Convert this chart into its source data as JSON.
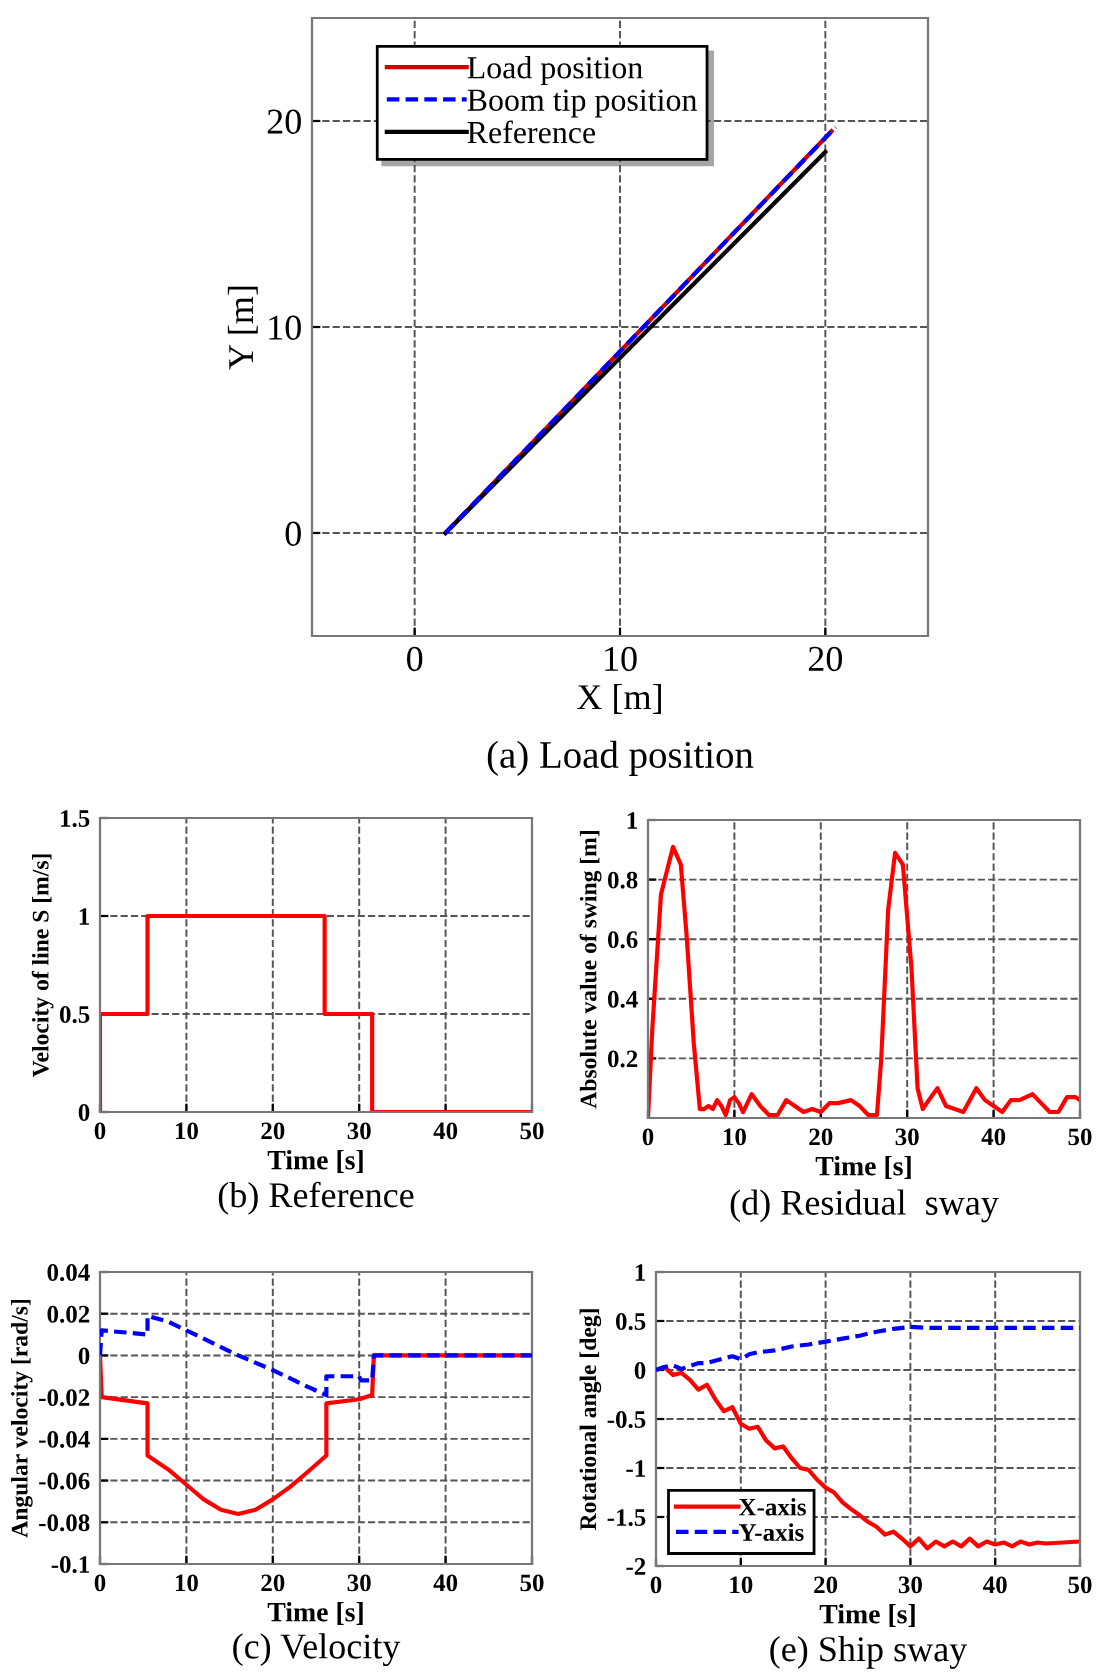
{
  "chart_data": [
    {
      "type": "line",
      "title": "(a) Load position",
      "xlabel": "X [m]",
      "ylabel": "Y [m]",
      "xlim": [
        -5,
        25
      ],
      "xticks": [
        0,
        10,
        20
      ],
      "ylim": [
        -5,
        25
      ],
      "yticks": [
        0,
        10,
        20
      ],
      "grid": true,
      "legend": "top left",
      "series": [
        {
          "name": "Load position",
          "color": "#d00000",
          "line_style": "solid",
          "x": [
            1.5,
            20.3
          ],
          "values": [
            0,
            19.5
          ]
        },
        {
          "name": "Boom tip position",
          "color": "#0000ff",
          "line_style": "dashed",
          "x": [
            1.5,
            20.5
          ],
          "values": [
            0,
            19.7
          ]
        },
        {
          "name": "Reference",
          "color": "#000000",
          "line_style": "solid",
          "x": [
            1.5,
            20
          ],
          "values": [
            0,
            18.5
          ]
        }
      ]
    },
    {
      "type": "line",
      "title": "(b) Reference",
      "xlabel": "Time [s]",
      "ylabel": "Velocity of line S [m/s]",
      "xlim": [
        0,
        50
      ],
      "xticks": [
        0,
        10,
        20,
        30,
        40,
        50
      ],
      "ylim": [
        0,
        1.5
      ],
      "yticks": [
        0,
        0.5,
        1,
        1.5
      ],
      "grid": true,
      "series": [
        {
          "color": "#ff0000",
          "line_style": "solid",
          "x": [
            0,
            0,
            5.5,
            5.5,
            26,
            26,
            31.5,
            31.5,
            50
          ],
          "values": [
            0,
            0.5,
            0.5,
            1,
            1,
            0.5,
            0.5,
            0,
            0
          ]
        }
      ]
    },
    {
      "type": "line",
      "title": "(d) Residual  sway",
      "xlabel": "Time [s]",
      "ylabel": "Absolute value of swing [m]",
      "xlim": [
        0,
        50
      ],
      "xticks": [
        0,
        10,
        20,
        30,
        40,
        50
      ],
      "ylim": [
        0,
        1
      ],
      "yticks": [
        0.2,
        0.4,
        0.6,
        0.8,
        1
      ],
      "grid": true,
      "series": [
        {
          "color": "#ff0000",
          "line_style": "solid",
          "x": [
            0,
            0.5,
            1.5,
            2.9,
            3.8,
            4.5,
            5.3,
            6,
            6.5,
            7,
            7.5,
            8,
            8.5,
            9,
            9.5,
            10,
            10.5,
            11,
            12,
            13,
            14,
            15,
            16,
            17,
            18,
            19,
            20,
            21,
            22,
            23.5,
            24.5,
            25.5,
            26.5,
            27,
            27.8,
            28.6,
            29.5,
            30.5,
            31.2,
            31.8,
            32.5,
            33.5,
            34.5,
            35.5,
            36.5,
            38,
            39,
            40,
            41,
            42,
            43,
            44.5,
            45.5,
            46.5,
            47.5,
            48.5,
            49.5,
            50
          ],
          "values": [
            0,
            0.3,
            0.75,
            0.91,
            0.85,
            0.6,
            0.25,
            0.03,
            0.03,
            0.04,
            0.03,
            0.06,
            0.04,
            0.01,
            0.06,
            0.07,
            0.05,
            0.02,
            0.08,
            0.04,
            0.01,
            0.01,
            0.06,
            0.04,
            0.02,
            0.03,
            0.02,
            0.05,
            0.05,
            0.06,
            0.04,
            0.01,
            0.01,
            0.2,
            0.7,
            0.89,
            0.85,
            0.5,
            0.1,
            0.03,
            0.06,
            0.1,
            0.04,
            0.03,
            0.02,
            0.1,
            0.06,
            0.04,
            0.02,
            0.06,
            0.06,
            0.08,
            0.05,
            0.02,
            0.02,
            0.07,
            0.07,
            0.06
          ]
        }
      ]
    },
    {
      "type": "line",
      "title": "(c) Velocity",
      "xlabel": "Time [s]",
      "ylabel": "Angular velocity [rad/s]",
      "xlim": [
        0,
        50
      ],
      "xticks": [
        0,
        10,
        20,
        30,
        40,
        50
      ],
      "ylim": [
        -0.1,
        0.04
      ],
      "yticks": [
        -0.1,
        -0.08,
        -0.06,
        -0.04,
        -0.02,
        0,
        0.02,
        0.04
      ],
      "grid": true,
      "series": [
        {
          "color": "#ff0000",
          "line_style": "solid",
          "x": [
            0,
            0.2,
            5.5,
            5.5,
            8,
            10,
            12,
            14,
            16,
            18,
            20,
            22,
            24,
            26.2,
            26.2,
            30,
            31.5,
            31.7,
            50
          ],
          "values": [
            0,
            -0.02,
            -0.023,
            -0.048,
            -0.055,
            -0.062,
            -0.069,
            -0.074,
            -0.076,
            -0.074,
            -0.069,
            -0.063,
            -0.056,
            -0.048,
            -0.023,
            -0.021,
            -0.019,
            0,
            0
          ]
        },
        {
          "color": "#0000ff",
          "line_style": "dashed",
          "x": [
            0,
            0.2,
            3,
            5.5,
            5.5,
            8,
            10,
            12,
            16,
            20,
            24,
            26.2,
            26.2,
            29,
            30,
            30.2,
            31.5,
            31.7,
            50
          ],
          "values": [
            0,
            0.012,
            0.011,
            0.01,
            0.019,
            0.016,
            0.012,
            0.008,
            0,
            -0.007,
            -0.015,
            -0.019,
            -0.01,
            -0.01,
            -0.01,
            -0.012,
            -0.012,
            0,
            0
          ]
        }
      ]
    },
    {
      "type": "line",
      "title": "(e) Ship sway",
      "xlabel": "Time [s]",
      "ylabel": "Rotational angle [deg]",
      "xlim": [
        0,
        50
      ],
      "xticks": [
        0,
        10,
        20,
        30,
        40,
        50
      ],
      "ylim": [
        -2,
        1
      ],
      "yticks": [
        -2,
        -1.5,
        -1,
        -0.5,
        0,
        0.5,
        1
      ],
      "grid": true,
      "legend": "bottom left",
      "series": [
        {
          "name": "X-axis",
          "color": "#ff0000",
          "line_style": "solid",
          "x": [
            0,
            1,
            2,
            3,
            4,
            5,
            6,
            7,
            8,
            9,
            10,
            11,
            12,
            13,
            14,
            15,
            16,
            17,
            18,
            19,
            20,
            21,
            22,
            23,
            24,
            25,
            26,
            27,
            28,
            29,
            30,
            31,
            32,
            33,
            34,
            35,
            36,
            37,
            38,
            39,
            40,
            41,
            42,
            43,
            44,
            45,
            46,
            48,
            50
          ],
          "values": [
            0,
            0.03,
            -0.05,
            -0.03,
            -0.1,
            -0.2,
            -0.15,
            -0.3,
            -0.42,
            -0.38,
            -0.55,
            -0.6,
            -0.58,
            -0.72,
            -0.8,
            -0.78,
            -0.9,
            -1.0,
            -1.02,
            -1.12,
            -1.2,
            -1.25,
            -1.35,
            -1.42,
            -1.48,
            -1.55,
            -1.6,
            -1.68,
            -1.65,
            -1.72,
            -1.8,
            -1.72,
            -1.82,
            -1.75,
            -1.8,
            -1.75,
            -1.8,
            -1.72,
            -1.8,
            -1.75,
            -1.78,
            -1.76,
            -1.8,
            -1.75,
            -1.78,
            -1.76,
            -1.77,
            -1.76,
            -1.75
          ]
        },
        {
          "name": "Y-axis",
          "color": "#0000ff",
          "line_style": "dashed",
          "x": [
            0,
            1,
            2,
            3,
            4,
            5,
            6,
            8,
            9,
            10,
            11,
            12,
            14,
            16,
            18,
            20,
            22,
            24,
            26,
            28,
            30,
            32,
            35,
            40,
            45,
            50
          ],
          "values": [
            0,
            0.03,
            0.05,
            0.01,
            0.04,
            0.07,
            0.07,
            0.12,
            0.14,
            0.11,
            0.16,
            0.18,
            0.2,
            0.24,
            0.26,
            0.29,
            0.32,
            0.35,
            0.39,
            0.42,
            0.44,
            0.43,
            0.43,
            0.43,
            0.43,
            0.43
          ]
        }
      ]
    }
  ]
}
